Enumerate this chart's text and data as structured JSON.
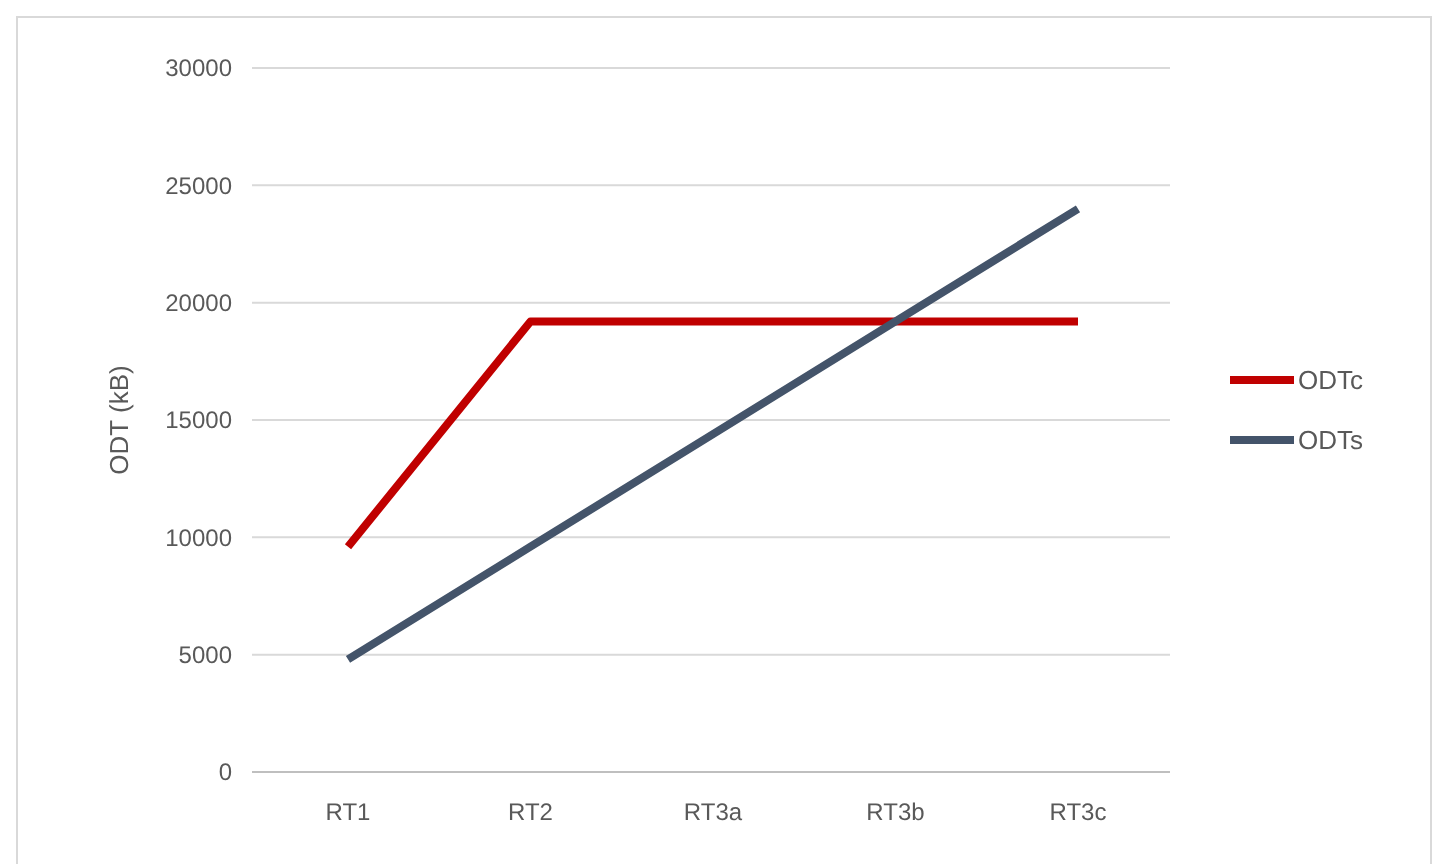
{
  "chart_data": {
    "type": "line",
    "ylabel": "ODT (kB)",
    "categories": [
      "RT1",
      "RT2",
      "RT3a",
      "RT3b",
      "RT3c"
    ],
    "series": [
      {
        "name": "ODTc",
        "color": "#c00000",
        "values": [
          9600,
          19200,
          19200,
          19200,
          19200
        ]
      },
      {
        "name": "ODTs",
        "color": "#44546a",
        "values": [
          4800,
          9600,
          14400,
          19200,
          24000
        ]
      }
    ],
    "ylim": [
      0,
      30000
    ],
    "yticks": [
      0,
      5000,
      10000,
      15000,
      20000,
      25000,
      30000
    ],
    "grid": "y",
    "legend": "right",
    "marker": "none",
    "line_style": "solid"
  }
}
